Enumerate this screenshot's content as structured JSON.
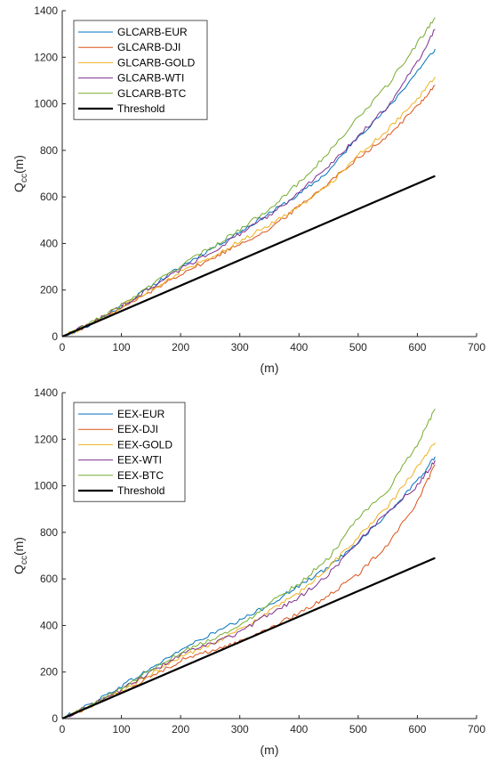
{
  "chart_data": [
    {
      "type": "line",
      "xlabel": "(m)",
      "ylabel_main": "Q",
      "ylabel_sub": "cc",
      "ylabel_suffix": "(m)",
      "xlim": [
        0,
        700
      ],
      "ylim": [
        0,
        1400
      ],
      "xticks": [
        0,
        100,
        200,
        300,
        400,
        500,
        600,
        700
      ],
      "yticks": [
        0,
        200,
        400,
        600,
        800,
        1000,
        1200,
        1400
      ],
      "grid": false,
      "legend": "top-left",
      "series": [
        {
          "name": "GLCARB-EUR",
          "color": "#0072BD",
          "x": [
            0,
            50,
            100,
            150,
            200,
            250,
            300,
            350,
            400,
            450,
            500,
            550,
            600,
            630
          ],
          "y": [
            0,
            55,
            130,
            215,
            300,
            375,
            450,
            530,
            610,
            710,
            860,
            980,
            1140,
            1235
          ]
        },
        {
          "name": "GLCARB-DJI",
          "color": "#D95319",
          "x": [
            0,
            50,
            100,
            150,
            200,
            250,
            300,
            350,
            400,
            450,
            500,
            550,
            600,
            630
          ],
          "y": [
            0,
            55,
            120,
            195,
            270,
            330,
            400,
            460,
            560,
            660,
            770,
            860,
            990,
            1080
          ]
        },
        {
          "name": "GLCARB-GOLD",
          "color": "#EDB120",
          "x": [
            0,
            50,
            100,
            150,
            200,
            250,
            300,
            350,
            400,
            450,
            500,
            550,
            600,
            630
          ],
          "y": [
            0,
            55,
            125,
            200,
            280,
            340,
            410,
            480,
            560,
            650,
            780,
            890,
            1020,
            1115
          ]
        },
        {
          "name": "GLCARB-WTI",
          "color": "#7E2F8E",
          "x": [
            0,
            50,
            100,
            150,
            200,
            250,
            300,
            350,
            400,
            450,
            500,
            550,
            600,
            630
          ],
          "y": [
            0,
            60,
            130,
            210,
            290,
            360,
            440,
            520,
            620,
            730,
            860,
            990,
            1180,
            1320
          ]
        },
        {
          "name": "GLCARB-BTC",
          "color": "#77AC30",
          "x": [
            0,
            50,
            100,
            150,
            200,
            250,
            300,
            350,
            400,
            450,
            500,
            550,
            600,
            630
          ],
          "y": [
            0,
            60,
            135,
            220,
            305,
            380,
            460,
            550,
            660,
            790,
            940,
            1080,
            1260,
            1370
          ]
        },
        {
          "name": "Threshold",
          "color": "#000000",
          "x": [
            0,
            630
          ],
          "y": [
            0,
            690
          ]
        }
      ]
    },
    {
      "type": "line",
      "xlabel": "(m)",
      "ylabel_main": "Q",
      "ylabel_sub": "cc",
      "ylabel_suffix": "(m)",
      "xlim": [
        0,
        700
      ],
      "ylim": [
        0,
        1400
      ],
      "xticks": [
        0,
        100,
        200,
        300,
        400,
        500,
        600,
        700
      ],
      "yticks": [
        0,
        200,
        400,
        600,
        800,
        1000,
        1200,
        1400
      ],
      "grid": false,
      "legend": "top-left",
      "series": [
        {
          "name": "EEX-EUR",
          "color": "#0072BD",
          "x": [
            0,
            50,
            100,
            150,
            200,
            250,
            300,
            350,
            400,
            450,
            500,
            550,
            600,
            630
          ],
          "y": [
            0,
            65,
            140,
            215,
            295,
            360,
            420,
            490,
            570,
            650,
            760,
            880,
            1020,
            1125
          ]
        },
        {
          "name": "EEX-DJI",
          "color": "#D95319",
          "x": [
            0,
            50,
            100,
            150,
            200,
            250,
            300,
            350,
            400,
            450,
            500,
            550,
            600,
            630
          ],
          "y": [
            0,
            55,
            115,
            180,
            250,
            290,
            330,
            390,
            450,
            530,
            620,
            750,
            930,
            1090
          ]
        },
        {
          "name": "EEX-GOLD",
          "color": "#EDB120",
          "x": [
            0,
            50,
            100,
            150,
            200,
            250,
            300,
            350,
            400,
            450,
            500,
            550,
            600,
            630
          ],
          "y": [
            0,
            55,
            120,
            190,
            265,
            320,
            380,
            460,
            540,
            650,
            780,
            910,
            1080,
            1185
          ]
        },
        {
          "name": "EEX-WTI",
          "color": "#7E2F8E",
          "x": [
            0,
            50,
            100,
            150,
            200,
            250,
            300,
            350,
            400,
            450,
            500,
            550,
            600,
            630
          ],
          "y": [
            0,
            60,
            125,
            200,
            275,
            320,
            370,
            450,
            520,
            620,
            760,
            890,
            1000,
            1110
          ]
        },
        {
          "name": "EEX-BTC",
          "color": "#77AC30",
          "x": [
            0,
            50,
            100,
            150,
            200,
            250,
            300,
            350,
            400,
            450,
            500,
            550,
            600,
            630
          ],
          "y": [
            0,
            60,
            130,
            210,
            285,
            340,
            395,
            500,
            580,
            690,
            860,
            980,
            1180,
            1330
          ]
        },
        {
          "name": "Threshold",
          "color": "#000000",
          "x": [
            0,
            630
          ],
          "y": [
            0,
            690
          ]
        }
      ]
    }
  ]
}
